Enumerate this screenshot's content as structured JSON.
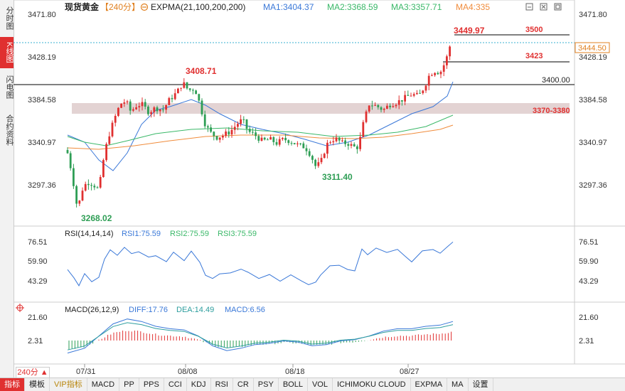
{
  "left_tabs": [
    {
      "label": "分时图",
      "active": false
    },
    {
      "label": "K线图",
      "active": true
    },
    {
      "label": "闪电图",
      "active": false
    },
    {
      "label": "合约资料",
      "active": false
    }
  ],
  "header": {
    "symbol": "现货黄金",
    "period": "【240分】",
    "indicator": "EXPMA(21,100,200,200)",
    "ma1": "MA1:3404.37",
    "ma2": "MA2:3368.59",
    "ma3": "MA3:3357.71",
    "ma4": "MA4:335"
  },
  "price_axis": [
    "3471.80",
    "3428.19",
    "3384.58",
    "3340.97",
    "3297.36"
  ],
  "current_price": "3444.50",
  "annotations": {
    "high": "3408.71",
    "low1": "3268.02",
    "low2": "3311.40",
    "peak": "3449.97",
    "level_3500": "3500",
    "level_3423": "3423",
    "level_3400": "3400.00",
    "zone": "3370-3380"
  },
  "rsi": {
    "title": "RSI(14,14,14)",
    "rsi1": "RSI1:75.59",
    "rsi2": "RSI2:75.59",
    "rsi3": "RSI3:75.59",
    "axis": [
      "76.51",
      "59.90",
      "43.29"
    ]
  },
  "macd": {
    "title": "MACD(26,12,9)",
    "diff": "DIFF:17.76",
    "dea": "DEA:14.49",
    "macd": "MACD:6.56",
    "axis": [
      "21.60",
      "2.31"
    ]
  },
  "dates": [
    "07/31",
    "08/08",
    "08/18",
    "08/27"
  ],
  "period_selector": "240分 ▲",
  "bottom_tabs": [
    {
      "label": "指标",
      "selected": true
    },
    {
      "label": "模板",
      "selected": false
    },
    {
      "label": "VIP指标",
      "selected": false,
      "vip": true
    },
    {
      "label": "MACD",
      "selected": false
    },
    {
      "label": "PP",
      "selected": false
    },
    {
      "label": "PPS",
      "selected": false
    },
    {
      "label": "CCI",
      "selected": false
    },
    {
      "label": "KDJ",
      "selected": false
    },
    {
      "label": "RSI",
      "selected": false
    },
    {
      "label": "CR",
      "selected": false
    },
    {
      "label": "PSY",
      "selected": false
    },
    {
      "label": "BOLL",
      "selected": false
    },
    {
      "label": "VOL",
      "selected": false
    },
    {
      "label": "ICHIMOKU CLOUD",
      "selected": false
    },
    {
      "label": "EXPMA",
      "selected": false
    },
    {
      "label": "MA",
      "selected": false
    },
    {
      "label": "设置",
      "selected": false
    }
  ],
  "colors": {
    "up": "#e03030",
    "down": "#2e9e55",
    "ma1": "#3a78d8",
    "ma2": "#3ab868",
    "ma3": "#f08c3c",
    "macd_diff": "#3a78d8",
    "macd_dea": "#2e9e9e"
  }
}
